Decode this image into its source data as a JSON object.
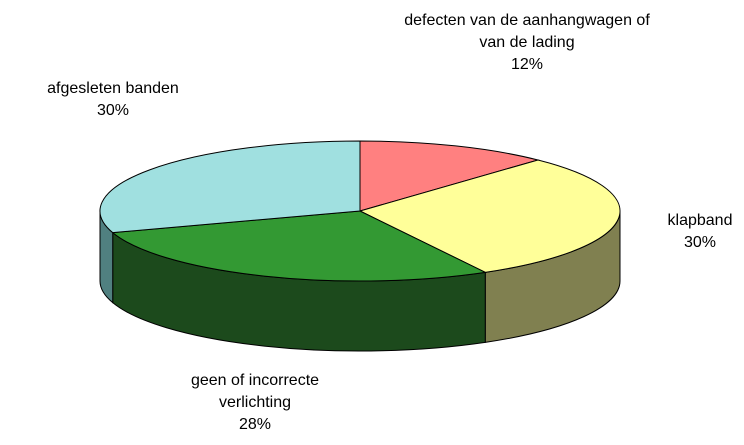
{
  "chart_data": {
    "type": "pie",
    "categories": [
      "defecten van de aanhangwagen of van de lading",
      "klapband",
      "geen of incorrecte verlichting",
      "afgesleten banden"
    ],
    "values": [
      12,
      30,
      28,
      30
    ],
    "value_labels": [
      "12%",
      "30%",
      "28%",
      "30%"
    ],
    "colors": [
      "#ff8080",
      "#ffff99",
      "#339933",
      "#a0e0e0"
    ],
    "side_colors": [
      "#804040",
      "#808050",
      "#1c4a1c",
      "#508080"
    ]
  }
}
